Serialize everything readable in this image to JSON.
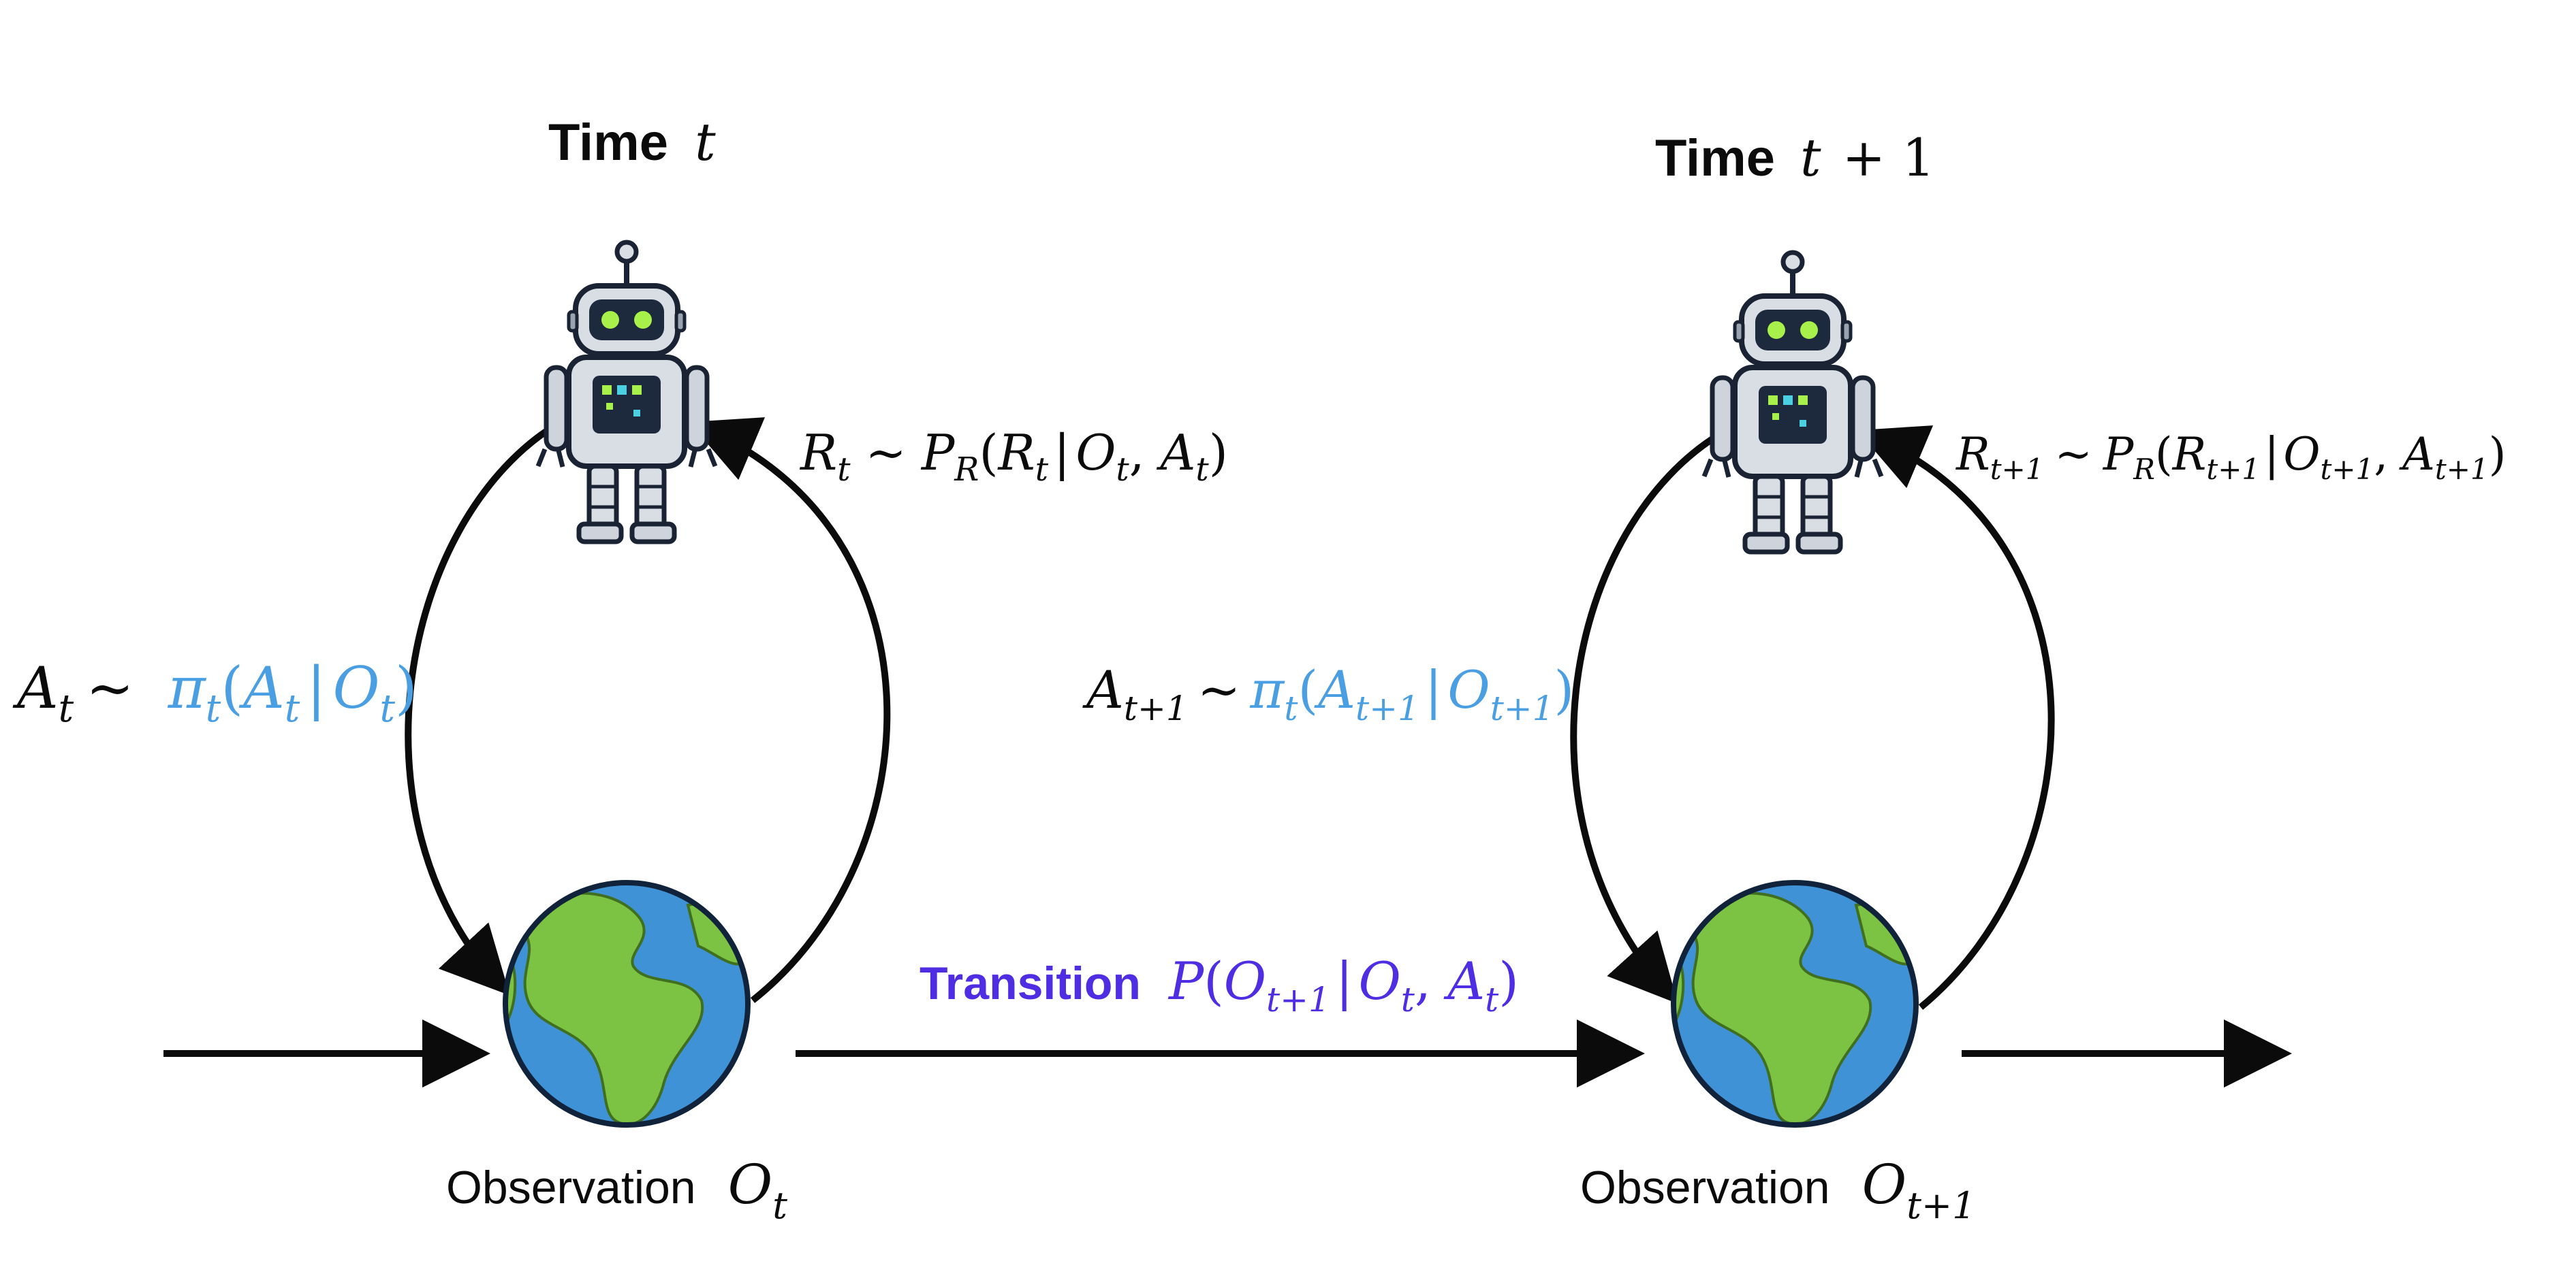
{
  "colors": {
    "ink": "#0b0b0b",
    "policy_blue": "#4a9fe3",
    "transition_purple": "#4f2de2",
    "ocean": "#3f92d6",
    "land": "#7cc243",
    "robot_body": "#d9dde4",
    "robot_eye": "#a8f04a"
  },
  "steps": [
    {
      "time_label": "Time",
      "time_var": "t",
      "time_suffix": "",
      "obs_label": "Observation",
      "obs_symbol": "O",
      "obs_sub": "t",
      "action_lhs": "A",
      "action_lhs_sub": "t",
      "action_tilde": "~",
      "policy": "π",
      "policy_sub": "t",
      "policy_arg": "A",
      "policy_arg_sub": "t",
      "policy_cond": "O",
      "policy_cond_sub": "t",
      "reward_lhs": "R",
      "reward_lhs_sub": "t",
      "reward_tilde": "~",
      "reward_p": "P",
      "reward_p_sub": "R",
      "reward_arg": "R",
      "reward_arg_sub": "t",
      "reward_cond1": "O",
      "reward_cond1_sub": "t",
      "reward_cond2": "A",
      "reward_cond2_sub": "t"
    },
    {
      "time_label": "Time",
      "time_var": "t",
      "time_suffix": "+ 1",
      "obs_label": "Observation",
      "obs_symbol": "O",
      "obs_sub": "t+1",
      "action_lhs": "A",
      "action_lhs_sub": "t+1",
      "action_tilde": "~",
      "policy": "π",
      "policy_sub": "t",
      "policy_arg": "A",
      "policy_arg_sub": "t+1",
      "policy_cond": "O",
      "policy_cond_sub": "t+1",
      "reward_lhs": "R",
      "reward_lhs_sub": "t+1",
      "reward_tilde": "~",
      "reward_p": "P",
      "reward_p_sub": "R",
      "reward_arg": "R",
      "reward_arg_sub": "t+1",
      "reward_cond1": "O",
      "reward_cond1_sub": "t+1",
      "reward_cond2": "A",
      "reward_cond2_sub": "t+1"
    }
  ],
  "transition": {
    "label": "Transition",
    "p": "P",
    "arg": "O",
    "arg_sub": "t+1",
    "cond1": "O",
    "cond1_sub": "t",
    "cond2": "A",
    "cond2_sub": "t"
  }
}
